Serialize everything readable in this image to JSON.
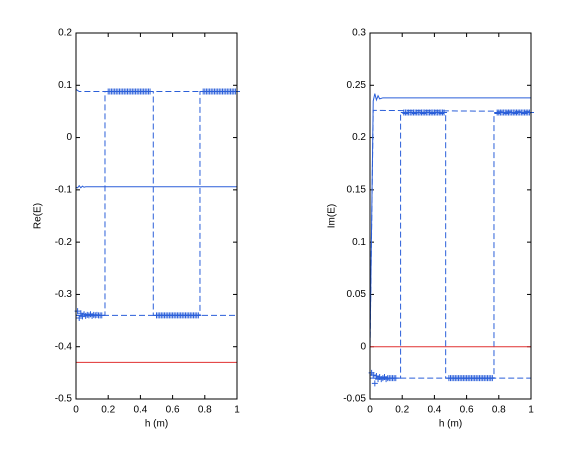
{
  "chart_data": [
    {
      "type": "line",
      "xlabel": "h (m)",
      "ylabel": "Re(E)",
      "xlim": [
        0,
        1
      ],
      "xticks": [
        0,
        0.2,
        0.4,
        0.6,
        0.8,
        1
      ],
      "ylim": [
        -0.5,
        0.2
      ],
      "yticks": [
        0.2,
        0.1,
        0,
        -0.1,
        -0.2,
        -0.3,
        -0.4,
        -0.5
      ],
      "series": [
        {
          "color": "#2b5fd9",
          "style": "solid",
          "x": [
            0,
            0.01,
            0.02,
            0.03,
            0.04,
            0.05,
            0.06,
            1
          ],
          "values": [
            -0.095,
            -0.096,
            -0.092,
            -0.096,
            -0.093,
            -0.095,
            -0.094,
            -0.094
          ]
        },
        {
          "color": "#2b5fd9",
          "style": "dashed",
          "x": [
            0,
            0.02,
            1
          ],
          "values": [
            0.092,
            0.088,
            0.088
          ]
        },
        {
          "color": "#2b5fd9",
          "style": "dashed",
          "x": [
            0,
            1
          ],
          "values": [
            -0.34,
            -0.34
          ]
        },
        {
          "color": "#2b5fd9",
          "style": "dashed",
          "x": [
            0,
            0.18,
            0.18,
            0.48,
            0.48,
            0.77,
            0.77,
            1
          ],
          "values": [
            -0.34,
            -0.34,
            0.088,
            0.088,
            -0.34,
            -0.34,
            0.088,
            0.088
          ]
        },
        {
          "color": "#2b5fd9",
          "style": "none",
          "marker": "+",
          "x": [
            0.01,
            0.02,
            0.03,
            0.04,
            0.05,
            0.06,
            0.07,
            0.08,
            0.09,
            0.1,
            0.11,
            0.12,
            0.13,
            0.14,
            0.15,
            0.16,
            0.2,
            0.21,
            0.22,
            0.23,
            0.24,
            0.25,
            0.26,
            0.27,
            0.28,
            0.29,
            0.3,
            0.31,
            0.32,
            0.33,
            0.34,
            0.35,
            0.36,
            0.37,
            0.38,
            0.39,
            0.4,
            0.41,
            0.42,
            0.43,
            0.44,
            0.45,
            0.46,
            0.5,
            0.51,
            0.52,
            0.53,
            0.54,
            0.55,
            0.56,
            0.57,
            0.58,
            0.59,
            0.6,
            0.61,
            0.62,
            0.63,
            0.64,
            0.65,
            0.66,
            0.67,
            0.68,
            0.69,
            0.7,
            0.71,
            0.72,
            0.73,
            0.74,
            0.75,
            0.76,
            0.79,
            0.8,
            0.81,
            0.82,
            0.83,
            0.84,
            0.85,
            0.86,
            0.87,
            0.88,
            0.89,
            0.9,
            0.91,
            0.92,
            0.93,
            0.94,
            0.95,
            0.96,
            0.97,
            0.98,
            0.99,
            1
          ],
          "values": [
            -0.332,
            -0.345,
            -0.336,
            -0.342,
            -0.338,
            -0.341,
            -0.339,
            -0.34,
            -0.338,
            -0.341,
            -0.339,
            -0.34,
            -0.339,
            -0.34,
            -0.34,
            -0.34,
            0.088,
            0.088,
            0.088,
            0.088,
            0.088,
            0.088,
            0.088,
            0.088,
            0.088,
            0.088,
            0.088,
            0.088,
            0.088,
            0.088,
            0.088,
            0.088,
            0.088,
            0.088,
            0.088,
            0.088,
            0.088,
            0.088,
            0.088,
            0.088,
            0.088,
            0.088,
            0.088,
            -0.34,
            -0.34,
            -0.34,
            -0.34,
            -0.34,
            -0.34,
            -0.34,
            -0.34,
            -0.34,
            -0.34,
            -0.34,
            -0.34,
            -0.34,
            -0.34,
            -0.34,
            -0.34,
            -0.34,
            -0.34,
            -0.34,
            -0.34,
            -0.34,
            -0.34,
            -0.34,
            -0.34,
            -0.34,
            -0.34,
            -0.34,
            0.088,
            0.088,
            0.088,
            0.088,
            0.088,
            0.088,
            0.088,
            0.088,
            0.088,
            0.088,
            0.088,
            0.088,
            0.088,
            0.088,
            0.088,
            0.088,
            0.088,
            0.088,
            0.088,
            0.088,
            0.088,
            0.088
          ]
        },
        {
          "color": "#e03030",
          "style": "solid",
          "x": [
            0,
            1
          ],
          "values": [
            -0.43,
            -0.43
          ]
        }
      ]
    },
    {
      "type": "line",
      "xlabel": "h (m)",
      "ylabel": "Im(E)",
      "xlim": [
        0,
        1
      ],
      "xticks": [
        0,
        0.2,
        0.4,
        0.6,
        0.8,
        1
      ],
      "ylim": [
        -0.05,
        0.3
      ],
      "yticks": [
        0.3,
        0.25,
        0.2,
        0.15,
        0.1,
        0.05,
        0,
        -0.05
      ],
      "series": [
        {
          "color": "#2b5fd9",
          "style": "solid",
          "x": [
            0,
            0.02,
            0.03,
            0.04,
            0.05,
            0.06,
            0.08,
            1
          ],
          "values": [
            0,
            0.235,
            0.242,
            0.236,
            0.24,
            0.237,
            0.238,
            0.238
          ]
        },
        {
          "color": "#2b5fd9",
          "style": "dashed",
          "x": [
            0,
            0.02,
            1
          ],
          "values": [
            0,
            0.226,
            0.225
          ]
        },
        {
          "color": "#2b5fd9",
          "style": "dashed",
          "x": [
            0.02,
            1
          ],
          "values": [
            -0.03,
            -0.03
          ]
        },
        {
          "color": "#2b5fd9",
          "style": "dashed",
          "x": [
            0,
            0.19,
            0.19,
            0.47,
            0.47,
            0.77,
            0.77,
            1
          ],
          "values": [
            -0.03,
            -0.03,
            0.223,
            0.223,
            -0.03,
            -0.03,
            0.223,
            0.223
          ]
        },
        {
          "color": "#2b5fd9",
          "style": "none",
          "marker": "+",
          "x": [
            0.01,
            0.02,
            0.03,
            0.04,
            0.05,
            0.06,
            0.07,
            0.08,
            0.09,
            0.1,
            0.11,
            0.12,
            0.13,
            0.14,
            0.15,
            0.16,
            0.21,
            0.22,
            0.23,
            0.24,
            0.25,
            0.26,
            0.27,
            0.28,
            0.29,
            0.3,
            0.31,
            0.32,
            0.33,
            0.34,
            0.35,
            0.36,
            0.37,
            0.38,
            0.39,
            0.4,
            0.41,
            0.42,
            0.43,
            0.44,
            0.45,
            0.46,
            0.49,
            0.5,
            0.51,
            0.52,
            0.53,
            0.54,
            0.55,
            0.56,
            0.57,
            0.58,
            0.59,
            0.6,
            0.61,
            0.62,
            0.63,
            0.64,
            0.65,
            0.66,
            0.67,
            0.68,
            0.69,
            0.7,
            0.71,
            0.72,
            0.73,
            0.74,
            0.75,
            0.76,
            0.79,
            0.8,
            0.81,
            0.82,
            0.83,
            0.84,
            0.85,
            0.86,
            0.87,
            0.88,
            0.89,
            0.9,
            0.91,
            0.92,
            0.93,
            0.94,
            0.95,
            0.96,
            0.97,
            0.98,
            0.99,
            1
          ],
          "values": [
            -0.025,
            -0.027,
            -0.035,
            -0.028,
            -0.031,
            -0.029,
            -0.031,
            -0.03,
            -0.029,
            -0.031,
            -0.03,
            -0.03,
            -0.03,
            -0.03,
            -0.03,
            -0.03,
            0.224,
            0.224,
            0.224,
            0.224,
            0.224,
            0.224,
            0.224,
            0.224,
            0.224,
            0.224,
            0.224,
            0.224,
            0.224,
            0.224,
            0.224,
            0.224,
            0.224,
            0.224,
            0.224,
            0.224,
            0.224,
            0.224,
            0.224,
            0.224,
            0.224,
            0.224,
            -0.03,
            -0.03,
            -0.03,
            -0.03,
            -0.03,
            -0.03,
            -0.03,
            -0.03,
            -0.03,
            -0.03,
            -0.03,
            -0.03,
            -0.03,
            -0.03,
            -0.03,
            -0.03,
            -0.03,
            -0.03,
            -0.03,
            -0.03,
            -0.03,
            -0.03,
            -0.03,
            -0.03,
            -0.03,
            -0.03,
            -0.03,
            -0.03,
            0.224,
            0.224,
            0.224,
            0.224,
            0.224,
            0.224,
            0.224,
            0.224,
            0.224,
            0.224,
            0.224,
            0.224,
            0.224,
            0.224,
            0.224,
            0.224,
            0.224,
            0.224,
            0.224,
            0.224,
            0.224,
            0.224
          ]
        },
        {
          "color": "#e03030",
          "style": "solid",
          "x": [
            0,
            1
          ],
          "values": [
            0,
            0
          ]
        }
      ]
    }
  ]
}
